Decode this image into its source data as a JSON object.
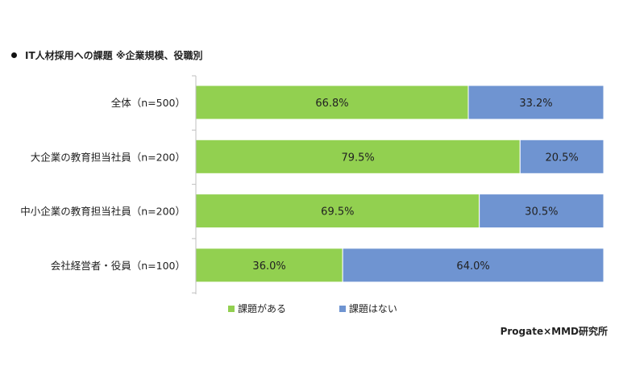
{
  "chart_data": {
    "type": "bar",
    "orientation": "horizontal",
    "stacked": true,
    "title": "IT人材採用への課題 ※企業規模、役職別",
    "categories": [
      "全体（n=500）",
      "大企業の教育担当社員（n=200）",
      "中小企業の教育担当社員（n=200）",
      "会社経営者・役員（n=100）"
    ],
    "series": [
      {
        "name": "課題がある",
        "color": "#92d050",
        "values": [
          66.8,
          79.5,
          69.5,
          36.0
        ],
        "labels": [
          "66.8%",
          "79.5%",
          "69.5%",
          "36.0%"
        ]
      },
      {
        "name": "課題はない",
        "color": "#6f94d1",
        "values": [
          33.2,
          20.5,
          30.5,
          64.0
        ],
        "labels": [
          "33.2%",
          "20.5%",
          "30.5%",
          "64.0%"
        ]
      }
    ],
    "xlim": [
      0,
      100
    ],
    "grid": false,
    "legend_position": "bottom",
    "source": "Progate×MMD研究所"
  }
}
